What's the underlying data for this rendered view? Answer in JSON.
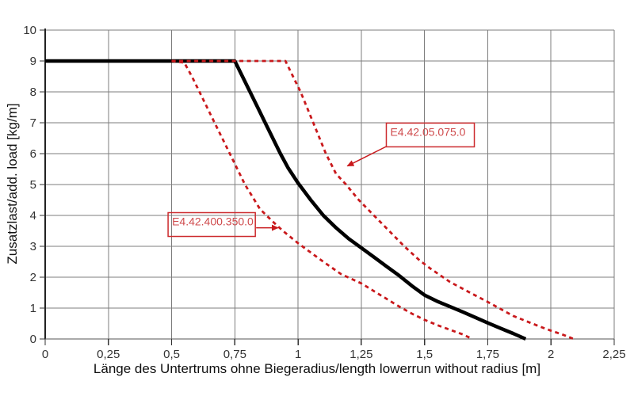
{
  "chart_data": {
    "type": "line",
    "title": "",
    "xlabel": "Länge des Untertrums ohne Biegeradius/length lowerrun without radius [m]",
    "ylabel": "Zusatzlast/add. load [kg/m]",
    "xlim": [
      0,
      2.25
    ],
    "ylim": [
      0,
      10
    ],
    "grid": true,
    "legend_position": "none",
    "xticks": [
      0,
      0.25,
      0.5,
      0.75,
      1,
      1.25,
      1.5,
      1.75,
      2,
      2.25
    ],
    "xtick_labels": [
      "0",
      "0,25",
      "0,5",
      "0,75",
      "1",
      "1,25",
      "1,5",
      "1,75",
      "2",
      "2,25"
    ],
    "yticks": [
      0,
      1,
      2,
      3,
      4,
      5,
      6,
      7,
      8,
      9,
      10
    ],
    "ytick_labels": [
      "0",
      "1",
      "2",
      "3",
      "4",
      "5",
      "6",
      "7",
      "8",
      "9",
      "10"
    ],
    "series": [
      {
        "id": "black-solid",
        "label": "",
        "color": "#000000",
        "dash": "solid",
        "width": 4.5,
        "points": [
          [
            0,
            9
          ],
          [
            0.75,
            9
          ],
          [
            0.78,
            8.5
          ],
          [
            0.81,
            8.0
          ],
          [
            0.84,
            7.5
          ],
          [
            0.87,
            7.0
          ],
          [
            0.9,
            6.5
          ],
          [
            0.93,
            6.0
          ],
          [
            0.96,
            5.55
          ],
          [
            1.0,
            5.05
          ],
          [
            1.05,
            4.5
          ],
          [
            1.1,
            4.0
          ],
          [
            1.15,
            3.6
          ],
          [
            1.2,
            3.25
          ],
          [
            1.25,
            2.95
          ],
          [
            1.3,
            2.65
          ],
          [
            1.35,
            2.35
          ],
          [
            1.4,
            2.05
          ],
          [
            1.45,
            1.72
          ],
          [
            1.5,
            1.42
          ],
          [
            1.55,
            1.22
          ],
          [
            1.6,
            1.05
          ],
          [
            1.65,
            0.88
          ],
          [
            1.7,
            0.7
          ],
          [
            1.75,
            0.52
          ],
          [
            1.8,
            0.35
          ],
          [
            1.85,
            0.18
          ],
          [
            1.9,
            0
          ]
        ]
      },
      {
        "id": "e4-42-05-075-0",
        "label": "E4.42.05.075.0",
        "color": "#c9191c",
        "dash": "dashed",
        "width": 2.8,
        "points": [
          [
            0.5,
            9
          ],
          [
            0.95,
            9
          ],
          [
            0.98,
            8.5
          ],
          [
            1.01,
            8.0
          ],
          [
            1.06,
            7.0
          ],
          [
            1.11,
            6.0
          ],
          [
            1.15,
            5.35
          ],
          [
            1.19,
            5.0
          ],
          [
            1.24,
            4.5
          ],
          [
            1.3,
            4.0
          ],
          [
            1.36,
            3.5
          ],
          [
            1.42,
            3.0
          ],
          [
            1.48,
            2.55
          ],
          [
            1.52,
            2.3
          ],
          [
            1.6,
            1.85
          ],
          [
            1.68,
            1.5
          ],
          [
            1.75,
            1.2
          ],
          [
            1.85,
            0.75
          ],
          [
            1.95,
            0.42
          ],
          [
            2.0,
            0.27
          ],
          [
            2.05,
            0.13
          ],
          [
            2.09,
            0
          ]
        ]
      },
      {
        "id": "e4-42-400-350-0",
        "label": "E4.42.400.350.0",
        "color": "#c9191c",
        "dash": "dashed",
        "width": 2.8,
        "points": [
          [
            0.5,
            9
          ],
          [
            0.55,
            8.95
          ],
          [
            0.58,
            8.5
          ],
          [
            0.61,
            8.0
          ],
          [
            0.67,
            7.0
          ],
          [
            0.73,
            6.0
          ],
          [
            0.79,
            5.0
          ],
          [
            0.85,
            4.2
          ],
          [
            0.9,
            3.8
          ],
          [
            0.94,
            3.5
          ],
          [
            1.0,
            3.1
          ],
          [
            1.05,
            2.8
          ],
          [
            1.1,
            2.5
          ],
          [
            1.17,
            2.1
          ],
          [
            1.25,
            1.8
          ],
          [
            1.3,
            1.55
          ],
          [
            1.35,
            1.3
          ],
          [
            1.4,
            1.05
          ],
          [
            1.45,
            0.82
          ],
          [
            1.5,
            0.62
          ],
          [
            1.55,
            0.45
          ],
          [
            1.6,
            0.3
          ],
          [
            1.65,
            0.15
          ],
          [
            1.69,
            0
          ]
        ]
      }
    ],
    "annotations": [
      {
        "label": "E4.42.05.075.0",
        "box": {
          "x": 1.349,
          "y": 6.99,
          "w": 0.348,
          "h": 0.77
        },
        "arrow": {
          "x1": 1.351,
          "y1": 6.24,
          "x2": 1.195,
          "y2": 5.6
        }
      },
      {
        "label": "E4.42.400.350.0",
        "box": {
          "x": 0.486,
          "y": 4.09,
          "w": 0.345,
          "h": 0.77
        },
        "arrow": {
          "x1": 0.834,
          "y1": 3.6,
          "x2": 0.921,
          "y2": 3.6
        }
      }
    ]
  },
  "colors": {
    "curve_black": "#000000",
    "curve_red": "#c9191c",
    "annotation_border_red": "#cc2a2d",
    "annotation_text_red": "#cf4a4c",
    "grid_gray": "#7d7d7d",
    "axis_dark": "#333333",
    "background": "#ffffff"
  }
}
